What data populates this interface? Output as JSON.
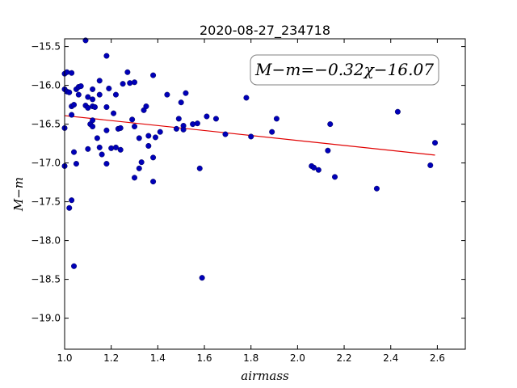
{
  "chart_data": {
    "type": "scatter",
    "title": "2020-08-27_234718",
    "xlabel": "airmass",
    "ylabel": "M−m",
    "xlim": [
      1.0,
      2.72
    ],
    "ylim": [
      -19.4,
      -15.4
    ],
    "y_inverted": true,
    "xticks": [
      "1.0",
      "1.2",
      "1.4",
      "1.6",
      "1.8",
      "2.0",
      "2.2",
      "2.4",
      "2.6"
    ],
    "yticks": [
      "−15.5",
      "−16.0",
      "−16.5",
      "−17.0",
      "−17.5",
      "−18.0",
      "−18.5",
      "−19.0"
    ],
    "annotation": "M−m=−0.32χ−16.07",
    "fit": {
      "slope": -0.32,
      "intercept": -16.07,
      "x_range": [
        1.0,
        2.59
      ],
      "color": "#e00000"
    },
    "point_color": "#0000b8",
    "grid": false,
    "points": [
      [
        1.0,
        -15.85
      ],
      [
        1.01,
        -15.83
      ],
      [
        1.0,
        -16.05
      ],
      [
        1.01,
        -16.08
      ],
      [
        1.0,
        -16.55
      ],
      [
        1.0,
        -17.04
      ],
      [
        1.02,
        -16.09
      ],
      [
        1.03,
        -15.84
      ],
      [
        1.03,
        -16.27
      ],
      [
        1.03,
        -16.38
      ],
      [
        1.04,
        -16.25
      ],
      [
        1.04,
        -16.86
      ],
      [
        1.05,
        -17.01
      ],
      [
        1.02,
        -17.58
      ],
      [
        1.03,
        -17.48
      ],
      [
        1.04,
        -18.33
      ],
      [
        1.05,
        -16.05
      ],
      [
        1.06,
        -16.02
      ],
      [
        1.07,
        -16.01
      ],
      [
        1.06,
        -16.12
      ],
      [
        1.09,
        -15.42
      ],
      [
        1.09,
        -16.26
      ],
      [
        1.1,
        -16.15
      ],
      [
        1.1,
        -16.29
      ],
      [
        1.1,
        -16.82
      ],
      [
        1.11,
        -16.5
      ],
      [
        1.12,
        -16.05
      ],
      [
        1.12,
        -16.18
      ],
      [
        1.12,
        -16.27
      ],
      [
        1.13,
        -16.28
      ],
      [
        1.12,
        -16.45
      ],
      [
        1.12,
        -16.53
      ],
      [
        1.14,
        -16.68
      ],
      [
        1.15,
        -16.8
      ],
      [
        1.15,
        -15.94
      ],
      [
        1.15,
        -16.12
      ],
      [
        1.16,
        -16.89
      ],
      [
        1.18,
        -15.62
      ],
      [
        1.18,
        -16.28
      ],
      [
        1.18,
        -16.58
      ],
      [
        1.18,
        -17.01
      ],
      [
        1.19,
        -16.04
      ],
      [
        1.2,
        -16.81
      ],
      [
        1.21,
        -16.36
      ],
      [
        1.22,
        -16.8
      ],
      [
        1.22,
        -16.12
      ],
      [
        1.23,
        -16.56
      ],
      [
        1.24,
        -16.55
      ],
      [
        1.24,
        -16.83
      ],
      [
        1.25,
        -15.98
      ],
      [
        1.27,
        -15.83
      ],
      [
        1.28,
        -15.97
      ],
      [
        1.29,
        -16.44
      ],
      [
        1.3,
        -15.96
      ],
      [
        1.3,
        -16.53
      ],
      [
        1.3,
        -17.19
      ],
      [
        1.32,
        -16.68
      ],
      [
        1.32,
        -17.07
      ],
      [
        1.33,
        -16.99
      ],
      [
        1.34,
        -16.32
      ],
      [
        1.35,
        -16.27
      ],
      [
        1.36,
        -16.65
      ],
      [
        1.36,
        -16.78
      ],
      [
        1.38,
        -16.93
      ],
      [
        1.38,
        -17.24
      ],
      [
        1.38,
        -15.87
      ],
      [
        1.39,
        -16.67
      ],
      [
        1.41,
        -16.6
      ],
      [
        1.44,
        -16.12
      ],
      [
        1.48,
        -16.56
      ],
      [
        1.49,
        -16.43
      ],
      [
        1.5,
        -16.22
      ],
      [
        1.51,
        -16.52
      ],
      [
        1.51,
        -16.57
      ],
      [
        1.52,
        -16.1
      ],
      [
        1.55,
        -16.5
      ],
      [
        1.57,
        -16.49
      ],
      [
        1.58,
        -17.07
      ],
      [
        1.59,
        -18.48
      ],
      [
        1.61,
        -16.4
      ],
      [
        1.65,
        -16.43
      ],
      [
        1.69,
        -16.63
      ],
      [
        1.78,
        -16.16
      ],
      [
        1.8,
        -16.66
      ],
      [
        1.89,
        -16.6
      ],
      [
        1.91,
        -16.43
      ],
      [
        2.06,
        -17.04
      ],
      [
        2.07,
        -17.06
      ],
      [
        2.09,
        -17.09
      ],
      [
        2.13,
        -16.84
      ],
      [
        2.14,
        -16.5
      ],
      [
        2.16,
        -17.18
      ],
      [
        2.34,
        -17.33
      ],
      [
        2.43,
        -16.34
      ],
      [
        2.57,
        -17.03
      ],
      [
        2.59,
        -16.74
      ]
    ]
  }
}
